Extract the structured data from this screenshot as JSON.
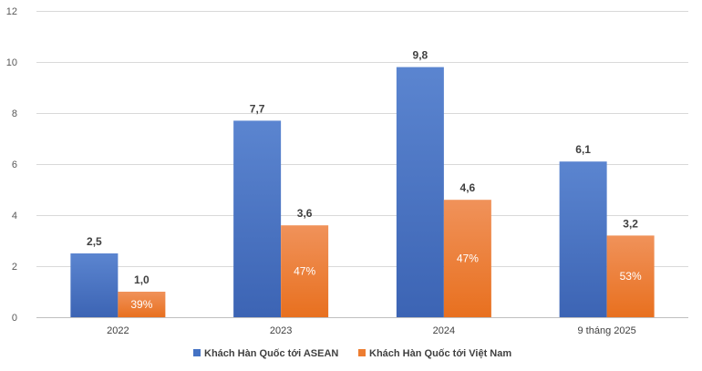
{
  "chart_data": {
    "type": "bar",
    "categories": [
      "2022",
      "2023",
      "2024",
      "9 tháng 2025"
    ],
    "series": [
      {
        "name": "Khách Hàn Quốc tới ASEAN",
        "values": [
          2.5,
          7.7,
          9.8,
          6.1
        ],
        "labels": [
          "2,5",
          "7,7",
          "9,8",
          "6,1"
        ],
        "color": "#4472c4"
      },
      {
        "name": "Khách Hàn Quốc tới Việt Nam",
        "values": [
          1.0,
          3.6,
          4.6,
          3.2
        ],
        "labels": [
          "1,0",
          "3,6",
          "4,6",
          "3,2"
        ],
        "share_labels": [
          "39%",
          "47%",
          "47%",
          "53%"
        ],
        "color": "#ed7d31"
      }
    ],
    "ylim": [
      0,
      12
    ],
    "yticks": [
      0,
      2,
      4,
      6,
      8,
      10,
      12
    ],
    "grid": true,
    "legend_position": "bottom"
  }
}
